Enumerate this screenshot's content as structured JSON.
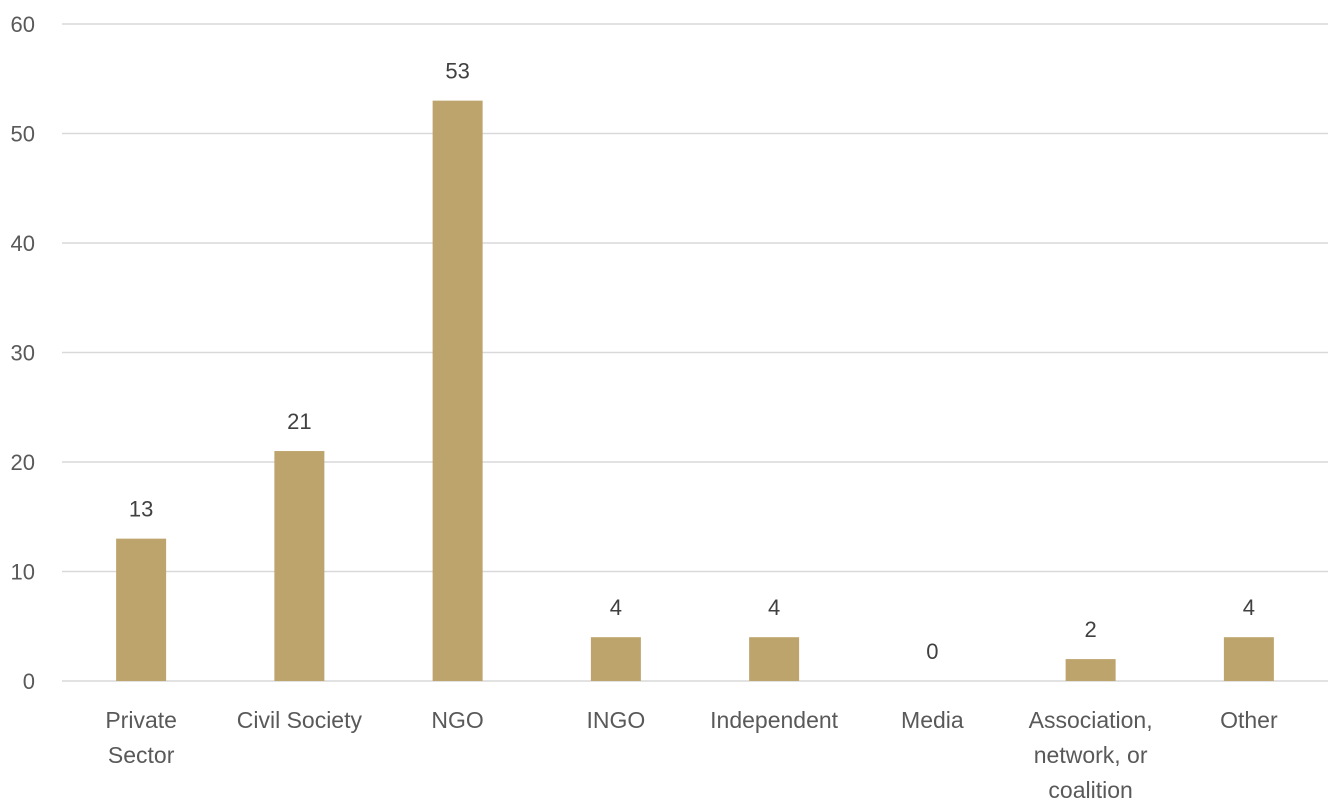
{
  "chart_data": {
    "type": "bar",
    "categories": [
      [
        "Private",
        "Sector"
      ],
      [
        "Civil Society"
      ],
      [
        "NGO"
      ],
      [
        "INGO"
      ],
      [
        "Independent"
      ],
      [
        "Media"
      ],
      [
        "Association,",
        "network, or",
        "coalition"
      ],
      [
        "Other"
      ]
    ],
    "values": [
      13,
      21,
      53,
      4,
      4,
      0,
      2,
      4
    ],
    "ylim": [
      0,
      60
    ],
    "yticks": [
      0,
      10,
      20,
      30,
      40,
      50,
      60
    ],
    "grid": true,
    "legend": "none",
    "data_labels": true,
    "colors": {
      "bar": "#bda46c"
    }
  }
}
